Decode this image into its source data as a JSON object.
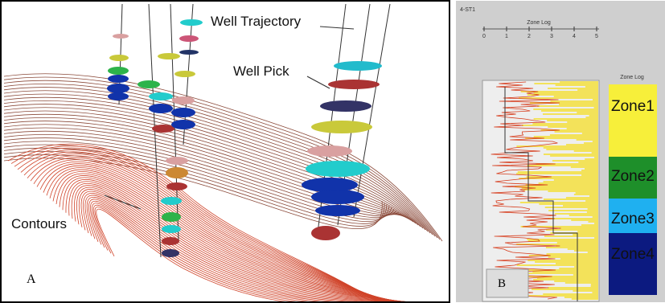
{
  "panel_a": {
    "label": "A",
    "annotations": [
      "Well Trajectory",
      "Well Pick",
      "Contours"
    ]
  },
  "panel_b": {
    "label": "B",
    "well": "4-ST1",
    "scale_title": "Zone Log",
    "scale_ticks": [
      "0",
      "1",
      "2",
      "3",
      "4",
      "5"
    ],
    "column_title": "Zone Log",
    "zones": [
      "Zone1",
      "Zone2",
      "Zone3",
      "Zone4"
    ]
  }
}
